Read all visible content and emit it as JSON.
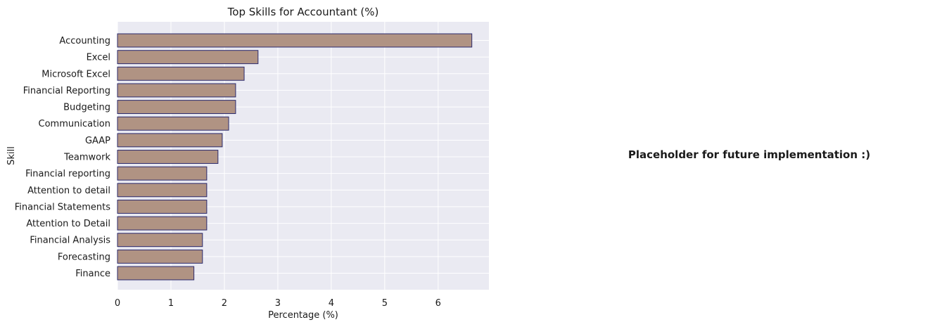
{
  "chart_data": {
    "type": "bar",
    "orientation": "horizontal",
    "title": "Top Skills for Accountant (%)",
    "xlabel": "Percentage (%)",
    "ylabel": "Skill",
    "categories": [
      "Accounting",
      "Excel",
      "Microsoft Excel",
      "Financial Reporting",
      "Budgeting",
      "Communication",
      "GAAP",
      "Teamwork",
      "Financial reporting",
      "Attention to detail",
      "Financial Statements",
      "Attention to Detail",
      "Financial Analysis",
      "Forecasting",
      "Finance"
    ],
    "values": [
      6.63,
      2.63,
      2.37,
      2.21,
      2.21,
      2.08,
      1.96,
      1.88,
      1.67,
      1.67,
      1.67,
      1.67,
      1.59,
      1.59,
      1.43
    ],
    "xlim": [
      0,
      6.95
    ],
    "xticks": [
      0,
      1,
      2,
      3,
      4,
      5,
      6
    ],
    "grid": true,
    "colors": {
      "bar_fill": "#b09383",
      "bar_edge": "#2b2a6e",
      "plot_bg": "#eaeaf2",
      "grid": "#ffffff"
    }
  },
  "placeholder_text": "Placeholder for future implementation :)"
}
